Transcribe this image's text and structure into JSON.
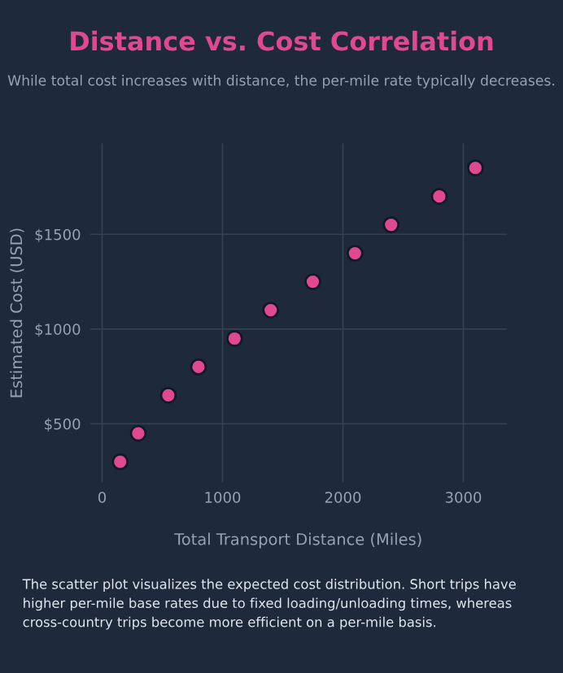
{
  "chart_data": {
    "type": "scatter",
    "title": "Distance vs. Cost Correlation",
    "subtitle": "While total cost increases with distance, the per-mile rate typically decreases.",
    "xlabel": "Total Transport Distance (Miles)",
    "ylabel": "Estimated Cost (USD)",
    "x": [
      150,
      300,
      550,
      800,
      1100,
      1400,
      1750,
      2100,
      2400,
      2800,
      3100
    ],
    "series": [
      {
        "color": "#e0488f",
        "values": [
          300,
          450,
          650,
          800,
          950,
          1100,
          1250,
          1400,
          1550,
          1700,
          1850
        ]
      }
    ],
    "xlim": [
      -100,
      3360
    ],
    "ylim": [
      190,
      1980
    ],
    "xticks": [
      0,
      1000,
      2000,
      3000
    ],
    "yticks": [
      {
        "value": 500,
        "label": "$500"
      },
      {
        "value": 1000,
        "label": "$1000"
      },
      {
        "value": 1500,
        "label": "$1500"
      }
    ],
    "grid": true,
    "marker": "circle",
    "legend": false,
    "annotations": [
      "The scatter plot visualizes the expected cost distribution. Short trips have higher per-mile base rates due to fixed loading/unloading times, whereas cross-country trips become more efficient on a per-mile basis."
    ]
  }
}
